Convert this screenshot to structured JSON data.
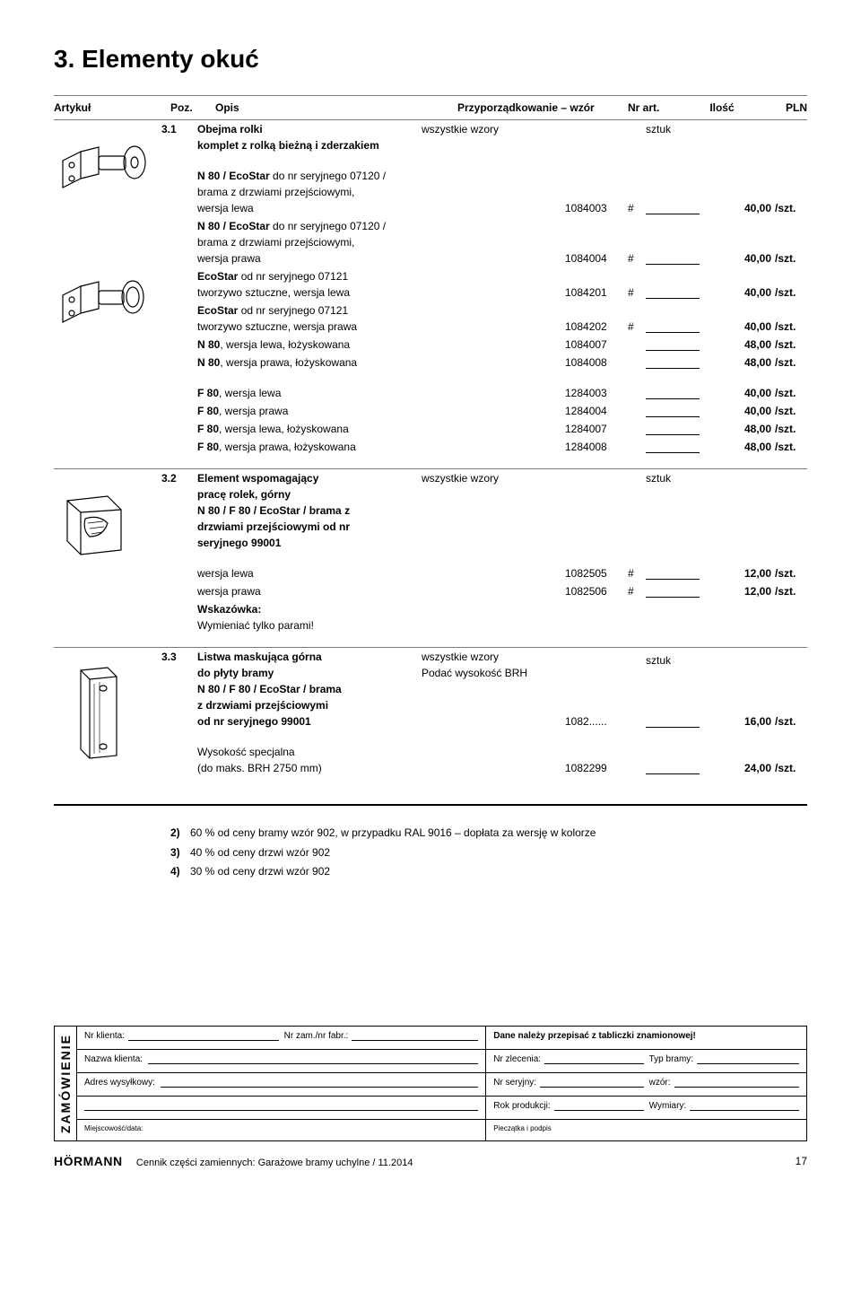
{
  "title": "3.   Elementy okuć",
  "header": {
    "artykul": "Artykuł",
    "poz": "Poz.",
    "opis": "Opis",
    "wzor": "Przyporządkowanie – wzór",
    "nr": "Nr art.",
    "ilosc": "Ilość",
    "pln": "PLN"
  },
  "sztuk_label": "sztuk",
  "section31": {
    "num": "3.1",
    "title": "Obejma rolki",
    "subtitle": "komplet z rolką bieżną i zderzakiem",
    "wzor": "wszystkie wzory",
    "rows": [
      {
        "desc_lines": [
          "N 80 / EcoStar do nr seryjnego 07120 /",
          "brama z drzwiami przejściowymi,",
          "wersja lewa"
        ],
        "nr": "1084003",
        "hash": "#",
        "price": "40,00",
        "unit": "/szt."
      },
      {
        "desc_lines": [
          "N 80 / EcoStar do nr seryjnego 07120 /",
          "brama z drzwiami przejściowymi,",
          "wersja prawa"
        ],
        "nr": "1084004",
        "hash": "#",
        "price": "40,00",
        "unit": "/szt."
      },
      {
        "desc_lines": [
          "EcoStar od nr seryjnego 07121",
          "tworzywo sztuczne, wersja lewa"
        ],
        "nr": "1084201",
        "hash": "#",
        "price": "40,00",
        "unit": "/szt."
      },
      {
        "desc_lines": [
          "EcoStar od nr seryjnego 07121",
          "tworzywo sztuczne, wersja prawa"
        ],
        "nr": "1084202",
        "hash": "#",
        "price": "40,00",
        "unit": "/szt."
      },
      {
        "desc_lines": [
          "N 80, wersja lewa, łożyskowana"
        ],
        "bold_prefix": "N 80",
        "nr": "1084007",
        "hash": "",
        "price": "48,00",
        "unit": "/szt."
      },
      {
        "desc_lines": [
          "N 80, wersja prawa, łożyskowana"
        ],
        "bold_prefix": "N 80",
        "nr": "1084008",
        "hash": "",
        "price": "48,00",
        "unit": "/szt."
      }
    ],
    "rows_f": [
      {
        "desc": "F 80, wersja lewa",
        "bold_prefix": "F 80",
        "nr": "1284003",
        "hash": "",
        "price": "40,00",
        "unit": "/szt."
      },
      {
        "desc": "F 80, wersja prawa",
        "bold_prefix": "F 80",
        "nr": "1284004",
        "hash": "",
        "price": "40,00",
        "unit": "/szt."
      },
      {
        "desc": "F 80, wersja lewa, łożyskowana",
        "bold_prefix": "F 80",
        "nr": "1284007",
        "hash": "",
        "price": "48,00",
        "unit": "/szt."
      },
      {
        "desc": "F 80, wersja prawa, łożyskowana",
        "bold_prefix": "F 80",
        "nr": "1284008",
        "hash": "",
        "price": "48,00",
        "unit": "/szt."
      }
    ]
  },
  "section32": {
    "num": "3.2",
    "title": "Element wspomagający",
    "subtitle_lines": [
      "pracę rolek, górny",
      "N 80 / F 80 / EcoStar / brama z",
      "drzwiami przejściowymi od nr",
      "seryjnego 99001"
    ],
    "wzor": "wszystkie wzory",
    "rows": [
      {
        "desc": "wersja lewa",
        "nr": "1082505",
        "hash": "#",
        "price": "12,00",
        "unit": "/szt."
      },
      {
        "desc": "wersja prawa",
        "nr": "1082506",
        "hash": "#",
        "price": "12,00",
        "unit": "/szt."
      }
    ],
    "note_label": "Wskazówka:",
    "note_text": "Wymieniać tylko parami!"
  },
  "section33": {
    "num": "3.3",
    "title": "Listwa maskująca górna",
    "subtitle_lines": [
      "do płyty bramy",
      "N 80 / F 80 / EcoStar / brama",
      "z drzwiami przejściowymi",
      "od nr seryjnego 99001"
    ],
    "wzor_lines": [
      "wszystkie wzory",
      "Podać wysokość BRH"
    ],
    "nr": "1082......",
    "price": "16,00",
    "unit": "/szt.",
    "extra_desc_lines": [
      "Wysokość specjalna",
      "(do maks. BRH 2750 mm)"
    ],
    "extra_nr": "1082299",
    "extra_price": "24,00",
    "extra_unit": "/szt."
  },
  "footnotes": [
    {
      "n": "2)",
      "t": "60 % od ceny bramy wzór 902, w przypadku RAL 9016 – dopłata za wersję w kolorze"
    },
    {
      "n": "3)",
      "t": "40 % od ceny drzwi wzór 902"
    },
    {
      "n": "4)",
      "t": "30 % od ceny drzwi wzór 902"
    }
  ],
  "order": {
    "side_label": "ZAMÓWIENIE",
    "top_right": "Dane należy przepisać z tabliczki znamionowej!",
    "nr_klienta": "Nr klienta:",
    "nr_zam": "Nr zam./nr fabr.:",
    "nr_zlecenia": "Nr zlecenia:",
    "typ_bramy": "Typ bramy:",
    "nazwa_klienta": "Nazwa klienta:",
    "nr_seryjny": "Nr seryjny:",
    "wzor": "wzór:",
    "adres": "Adres wysyłkowy:",
    "rok": "Rok produkcji:",
    "wymiary": "Wymiary:",
    "miejsc": "Miejscowość/data:",
    "piecz": "Pieczątka i podpis"
  },
  "footer": {
    "logo": "HÖRMANN",
    "text": "Cennik części zamiennych: Garażowe bramy uchylne / 11.2014",
    "page": "17"
  }
}
